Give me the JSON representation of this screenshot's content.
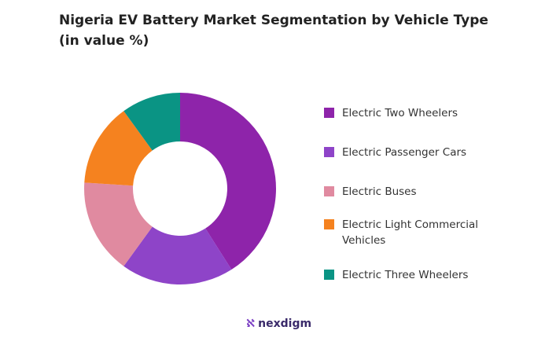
{
  "chart_data": {
    "type": "donut",
    "title": "Nigeria EV Battery Market Segmentation by Vehicle Type",
    "subtitle": "(in value %)",
    "categories": [
      "Electric Two Wheelers",
      "Electric Passenger Cars",
      "Electric Buses",
      "Electric Light Commercial Vehicles",
      "Electric Three Wheelers"
    ],
    "values": [
      41,
      19,
      16,
      14,
      10
    ],
    "colors": [
      "#8e24aa",
      "#8e44c8",
      "#e08aa0",
      "#f5821f",
      "#0a9484"
    ],
    "legend": "right"
  },
  "brand": "nexdigm"
}
